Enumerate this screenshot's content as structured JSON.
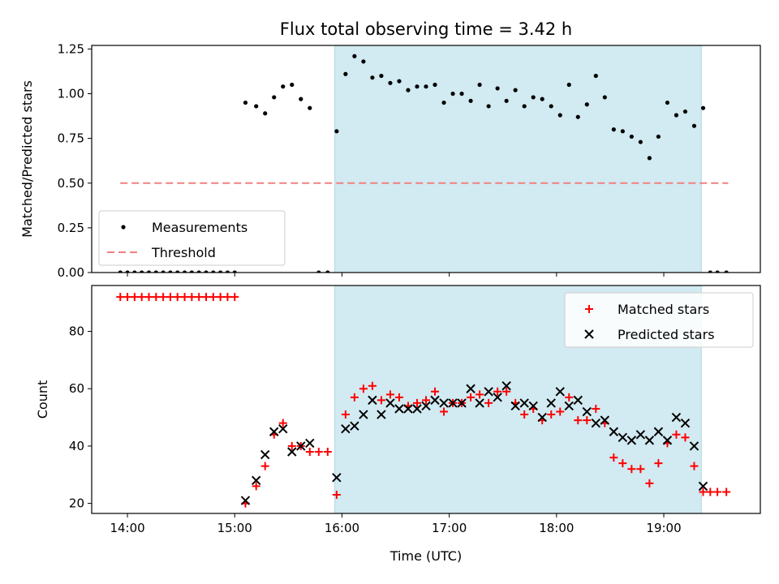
{
  "chart_data": [
    {
      "type": "scatter",
      "title": "Flux total observing time = 3.42 h",
      "xlabel": "",
      "ylabel": "Matched/Predicted stars",
      "xlim": [
        "13:40",
        "19:54"
      ],
      "ylim": [
        0,
        1.27
      ],
      "yticks": [
        "0.00",
        "0.25",
        "0.50",
        "0.75",
        "1.00",
        "1.25"
      ],
      "shaded_interval": [
        "15:56",
        "19:21"
      ],
      "shade_color": "#add8e6",
      "legend": {
        "position": "lower-left",
        "entries": [
          "Measurements",
          "Threshold"
        ]
      },
      "series": [
        {
          "name": "Measurements",
          "marker": "dot",
          "color": "#000000",
          "points": [
            [
              "13:56",
              0
            ],
            [
              "14:00",
              0
            ],
            [
              "14:04",
              0
            ],
            [
              "14:08",
              0
            ],
            [
              "14:12",
              0
            ],
            [
              "14:16",
              0
            ],
            [
              "14:20",
              0
            ],
            [
              "14:24",
              0
            ],
            [
              "14:28",
              0
            ],
            [
              "14:32",
              0
            ],
            [
              "14:36",
              0
            ],
            [
              "14:40",
              0
            ],
            [
              "14:44",
              0
            ],
            [
              "14:48",
              0
            ],
            [
              "14:52",
              0
            ],
            [
              "14:56",
              0
            ],
            [
              "15:00",
              0
            ],
            [
              "15:06",
              0.95
            ],
            [
              "15:12",
              0.93
            ],
            [
              "15:17",
              0.89
            ],
            [
              "15:22",
              0.98
            ],
            [
              "15:27",
              1.04
            ],
            [
              "15:32",
              1.05
            ],
            [
              "15:37",
              0.97
            ],
            [
              "15:42",
              0.92
            ],
            [
              "15:47",
              0
            ],
            [
              "15:52",
              0
            ],
            [
              "15:57",
              0.79
            ],
            [
              "16:02",
              1.11
            ],
            [
              "16:07",
              1.21
            ],
            [
              "16:12",
              1.18
            ],
            [
              "16:17",
              1.09
            ],
            [
              "16:22",
              1.1
            ],
            [
              "16:27",
              1.06
            ],
            [
              "16:32",
              1.07
            ],
            [
              "16:37",
              1.02
            ],
            [
              "16:42",
              1.04
            ],
            [
              "16:47",
              1.04
            ],
            [
              "16:52",
              1.05
            ],
            [
              "16:57",
              0.95
            ],
            [
              "17:02",
              1.0
            ],
            [
              "17:07",
              1.0
            ],
            [
              "17:12",
              0.96
            ],
            [
              "17:17",
              1.05
            ],
            [
              "17:22",
              0.93
            ],
            [
              "17:27",
              1.03
            ],
            [
              "17:32",
              0.96
            ],
            [
              "17:37",
              1.02
            ],
            [
              "17:42",
              0.93
            ],
            [
              "17:47",
              0.98
            ],
            [
              "17:52",
              0.97
            ],
            [
              "17:57",
              0.93
            ],
            [
              "18:02",
              0.88
            ],
            [
              "18:07",
              1.05
            ],
            [
              "18:12",
              0.87
            ],
            [
              "18:17",
              0.94
            ],
            [
              "18:22",
              1.1
            ],
            [
              "18:27",
              0.98
            ],
            [
              "18:32",
              0.8
            ],
            [
              "18:37",
              0.79
            ],
            [
              "18:42",
              0.76
            ],
            [
              "18:47",
              0.73
            ],
            [
              "18:52",
              0.64
            ],
            [
              "18:57",
              0.76
            ],
            [
              "19:02",
              0.95
            ],
            [
              "19:07",
              0.88
            ],
            [
              "19:12",
              0.9
            ],
            [
              "19:17",
              0.82
            ],
            [
              "19:22",
              0.92
            ],
            [
              "19:26",
              0
            ],
            [
              "19:30",
              0
            ],
            [
              "19:35",
              0
            ]
          ]
        },
        {
          "name": "Threshold",
          "marker": "dashed-line",
          "color": "#f08080",
          "points": [
            [
              "13:56",
              0.5
            ],
            [
              "19:36",
              0.5
            ]
          ]
        }
      ]
    },
    {
      "type": "scatter",
      "title": "",
      "xlabel": "Time (UTC)",
      "ylabel": "Count",
      "xlim": [
        "13:40",
        "19:54"
      ],
      "ylim": [
        16.5,
        96
      ],
      "yticks": [
        "20",
        "40",
        "60",
        "80"
      ],
      "xticks": [
        "14:00",
        "15:00",
        "16:00",
        "17:00",
        "18:00",
        "19:00"
      ],
      "shaded_interval": [
        "15:56",
        "19:21"
      ],
      "shade_color": "#add8e6",
      "legend": {
        "position": "top-right",
        "entries": [
          "Matched stars",
          "Predicted stars"
        ]
      },
      "series": [
        {
          "name": "Matched stars",
          "marker": "plus",
          "color": "#ff0000",
          "points": [
            [
              "13:56",
              92
            ],
            [
              "14:00",
              92
            ],
            [
              "14:04",
              92
            ],
            [
              "14:08",
              92
            ],
            [
              "14:12",
              92
            ],
            [
              "14:16",
              92
            ],
            [
              "14:20",
              92
            ],
            [
              "14:24",
              92
            ],
            [
              "14:28",
              92
            ],
            [
              "14:32",
              92
            ],
            [
              "14:36",
              92
            ],
            [
              "14:40",
              92
            ],
            [
              "14:44",
              92
            ],
            [
              "14:48",
              92
            ],
            [
              "14:52",
              92
            ],
            [
              "14:56",
              92
            ],
            [
              "15:00",
              92
            ],
            [
              "15:06",
              20
            ],
            [
              "15:12",
              26
            ],
            [
              "15:17",
              33
            ],
            [
              "15:22",
              44
            ],
            [
              "15:27",
              48
            ],
            [
              "15:32",
              40
            ],
            [
              "15:37",
              40
            ],
            [
              "15:42",
              38
            ],
            [
              "15:47",
              38
            ],
            [
              "15:52",
              38
            ],
            [
              "15:57",
              23
            ],
            [
              "16:02",
              51
            ],
            [
              "16:07",
              57
            ],
            [
              "16:12",
              60
            ],
            [
              "16:17",
              61
            ],
            [
              "16:22",
              56
            ],
            [
              "16:27",
              58
            ],
            [
              "16:32",
              57
            ],
            [
              "16:37",
              54
            ],
            [
              "16:42",
              55
            ],
            [
              "16:47",
              56
            ],
            [
              "16:52",
              59
            ],
            [
              "16:57",
              52
            ],
            [
              "17:02",
              55
            ],
            [
              "17:07",
              55
            ],
            [
              "17:12",
              57
            ],
            [
              "17:17",
              58
            ],
            [
              "17:22",
              55
            ],
            [
              "17:27",
              59
            ],
            [
              "17:32",
              59
            ],
            [
              "17:37",
              55
            ],
            [
              "17:42",
              51
            ],
            [
              "17:47",
              53
            ],
            [
              "17:52",
              49
            ],
            [
              "17:57",
              51
            ],
            [
              "18:02",
              52
            ],
            [
              "18:07",
              57
            ],
            [
              "18:12",
              49
            ],
            [
              "18:17",
              49
            ],
            [
              "18:22",
              53
            ],
            [
              "18:27",
              48
            ],
            [
              "18:32",
              36
            ],
            [
              "18:37",
              34
            ],
            [
              "18:42",
              32
            ],
            [
              "18:47",
              32
            ],
            [
              "18:52",
              27
            ],
            [
              "18:57",
              34
            ],
            [
              "19:02",
              41
            ],
            [
              "19:07",
              44
            ],
            [
              "19:12",
              43
            ],
            [
              "19:17",
              33
            ],
            [
              "19:22",
              24
            ],
            [
              "19:26",
              24
            ],
            [
              "19:30",
              24
            ],
            [
              "19:35",
              24
            ]
          ]
        },
        {
          "name": "Predicted stars",
          "marker": "x",
          "color": "#000000",
          "points": [
            [
              "15:06",
              21
            ],
            [
              "15:12",
              28
            ],
            [
              "15:17",
              37
            ],
            [
              "15:22",
              45
            ],
            [
              "15:27",
              46
            ],
            [
              "15:32",
              38
            ],
            [
              "15:37",
              40
            ],
            [
              "15:42",
              41
            ],
            [
              "15:57",
              29
            ],
            [
              "16:02",
              46
            ],
            [
              "16:07",
              47
            ],
            [
              "16:12",
              51
            ],
            [
              "16:17",
              56
            ],
            [
              "16:22",
              51
            ],
            [
              "16:27",
              55
            ],
            [
              "16:32",
              53
            ],
            [
              "16:37",
              53
            ],
            [
              "16:42",
              53
            ],
            [
              "16:47",
              54
            ],
            [
              "16:52",
              56
            ],
            [
              "16:57",
              55
            ],
            [
              "17:02",
              55
            ],
            [
              "17:07",
              55
            ],
            [
              "17:12",
              60
            ],
            [
              "17:17",
              55
            ],
            [
              "17:22",
              59
            ],
            [
              "17:27",
              57
            ],
            [
              "17:32",
              61
            ],
            [
              "17:37",
              54
            ],
            [
              "17:42",
              55
            ],
            [
              "17:47",
              54
            ],
            [
              "17:52",
              50
            ],
            [
              "17:57",
              55
            ],
            [
              "18:02",
              59
            ],
            [
              "18:07",
              54
            ],
            [
              "18:12",
              56
            ],
            [
              "18:17",
              52
            ],
            [
              "18:22",
              48
            ],
            [
              "18:27",
              49
            ],
            [
              "18:32",
              45
            ],
            [
              "18:37",
              43
            ],
            [
              "18:42",
              42
            ],
            [
              "18:47",
              44
            ],
            [
              "18:52",
              42
            ],
            [
              "18:57",
              45
            ],
            [
              "19:02",
              42
            ],
            [
              "19:07",
              50
            ],
            [
              "19:12",
              48
            ],
            [
              "19:17",
              40
            ],
            [
              "19:22",
              26
            ]
          ]
        }
      ]
    }
  ]
}
